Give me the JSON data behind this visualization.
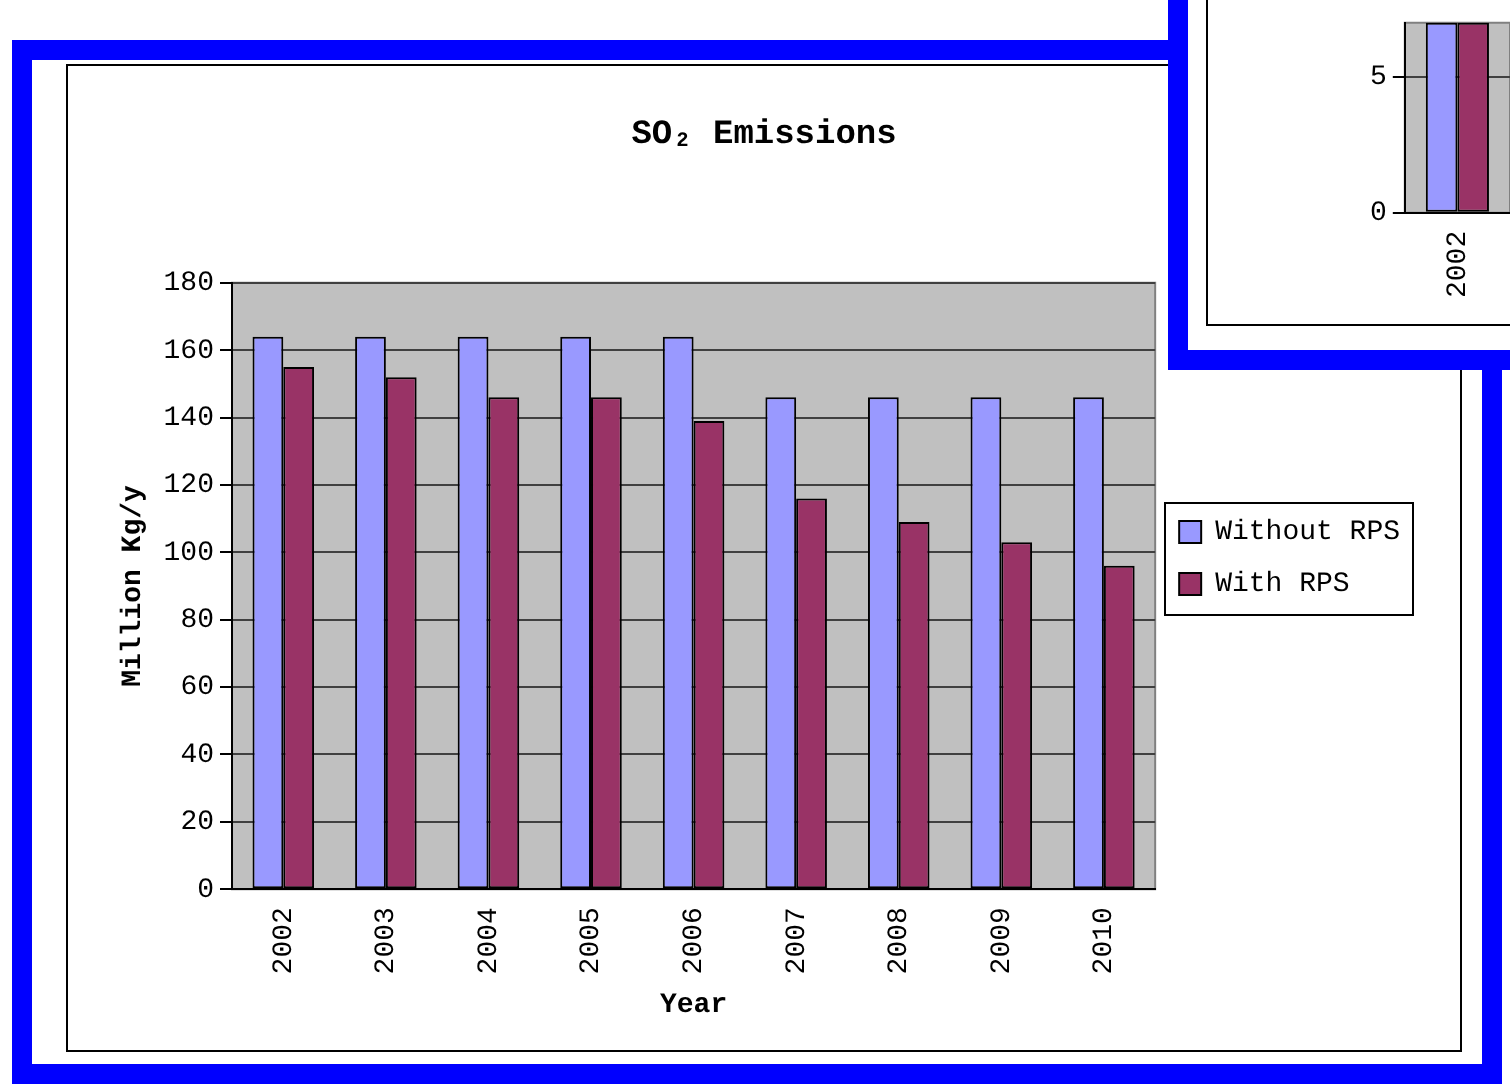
{
  "chart_data": [
    {
      "type": "bar",
      "title": "SO₂ Emissions",
      "xlabel": "Year",
      "ylabel": "Million Kg/y",
      "categories": [
        "2002",
        "2003",
        "2004",
        "2005",
        "2006",
        "2007",
        "2008",
        "2009",
        "2010"
      ],
      "series": [
        {
          "name": "Without RPS",
          "color": "#9999ff",
          "values": [
            164,
            164,
            164,
            164,
            164,
            146,
            146,
            146,
            146
          ]
        },
        {
          "name": "With RPS",
          "color": "#993366",
          "values": [
            155,
            152,
            146,
            146,
            139,
            116,
            109,
            103,
            96
          ]
        }
      ],
      "ylim": [
        0,
        180
      ],
      "yticks": [
        0,
        20,
        40,
        60,
        80,
        100,
        120,
        140,
        160,
        180
      ],
      "grid": "y",
      "legend": "right"
    },
    {
      "type": "bar",
      "categories": [
        "2002"
      ],
      "series": [
        {
          "color": "#9999ff",
          "values": [
            7
          ]
        },
        {
          "color": "#993366",
          "values": [
            7
          ]
        }
      ],
      "ylim": [
        0,
        7
      ],
      "yticks": [
        0,
        5
      ],
      "grid": "y",
      "legend": false
    }
  ]
}
